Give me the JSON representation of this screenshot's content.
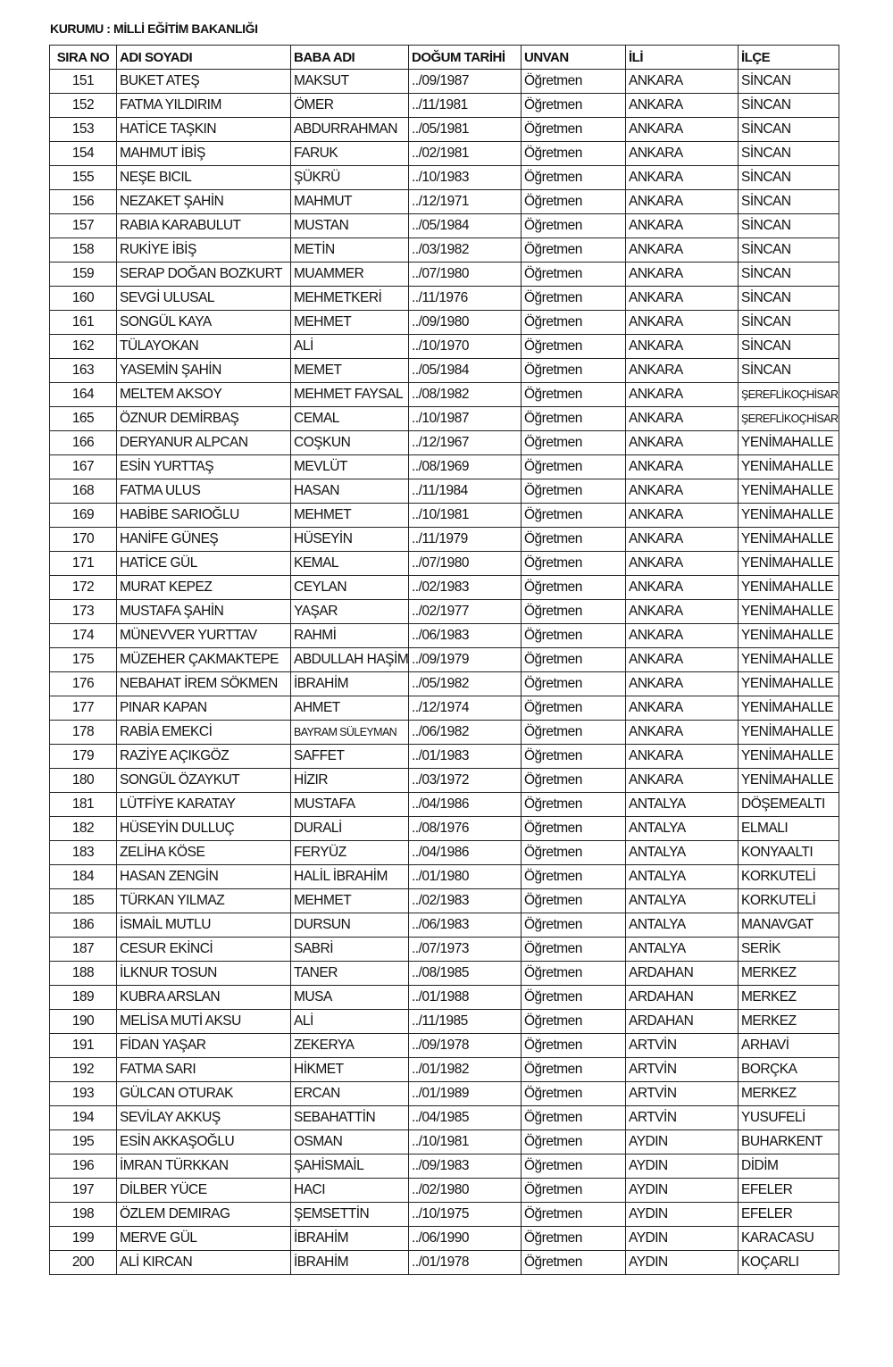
{
  "title": "KURUMU : MİLLİ EĞİTİM BAKANLIĞI",
  "headers": [
    "SIRA NO",
    "ADI SOYADI",
    "BABA ADI",
    "DOĞUM TARİHİ",
    "UNVAN",
    "İLİ",
    "İLÇE"
  ],
  "rows": [
    [
      "151",
      "BUKET ATEŞ",
      "MAKSUT",
      "../09/1987",
      "Öğretmen",
      "ANKARA",
      "SİNCAN"
    ],
    [
      "152",
      "FATMA YILDIRIM",
      "ÖMER",
      "../11/1981",
      "Öğretmen",
      "ANKARA",
      "SİNCAN"
    ],
    [
      "153",
      "HATİCE TAŞKIN",
      "ABDURRAHMAN",
      "../05/1981",
      "Öğretmen",
      "ANKARA",
      "SİNCAN"
    ],
    [
      "154",
      "MAHMUT İBİŞ",
      "FARUK",
      "../02/1981",
      "Öğretmen",
      "ANKARA",
      "SİNCAN"
    ],
    [
      "155",
      "NEŞE BICIL",
      "ŞÜKRÜ",
      "../10/1983",
      "Öğretmen",
      "ANKARA",
      "SİNCAN"
    ],
    [
      "156",
      "NEZAKET ŞAHİN",
      "MAHMUT",
      "../12/1971",
      "Öğretmen",
      "ANKARA",
      "SİNCAN"
    ],
    [
      "157",
      "RABIA KARABULUT",
      "MUSTAN",
      "../05/1984",
      "Öğretmen",
      "ANKARA",
      "SİNCAN"
    ],
    [
      "158",
      "RUKİYE İBİŞ",
      "METİN",
      "../03/1982",
      "Öğretmen",
      "ANKARA",
      "SİNCAN"
    ],
    [
      "159",
      "SERAP DOĞAN BOZKURT",
      "MUAMMER",
      "../07/1980",
      "Öğretmen",
      "ANKARA",
      "SİNCAN"
    ],
    [
      "160",
      "SEVGİ ULUSAL",
      "MEHMETKERİ",
      "../11/1976",
      "Öğretmen",
      "ANKARA",
      "SİNCAN"
    ],
    [
      "161",
      "SONGÜL KAYA",
      "MEHMET",
      "../09/1980",
      "Öğretmen",
      "ANKARA",
      "SİNCAN"
    ],
    [
      "162",
      "TÜLAYOKAN",
      "ALİ",
      "../10/1970",
      "Öğretmen",
      "ANKARA",
      "SİNCAN"
    ],
    [
      "163",
      "YASEMİN ŞAHİN",
      "MEMET",
      "../05/1984",
      "Öğretmen",
      "ANKARA",
      "SİNCAN"
    ],
    [
      "164",
      "MELTEM AKSOY",
      "MEHMET FAYSAL",
      "../08/1982",
      "Öğretmen",
      "ANKARA",
      "ŞEREFLİKOÇHİSAR"
    ],
    [
      "165",
      "ÖZNUR DEMİRBAŞ",
      "CEMAL",
      "../10/1987",
      "Öğretmen",
      "ANKARA",
      "ŞEREFLİKOÇHİSAR"
    ],
    [
      "166",
      "DERYANUR ALPCAN",
      "COŞKUN",
      "../12/1967",
      "Öğretmen",
      "ANKARA",
      "YENİMAHALLE"
    ],
    [
      "167",
      "ESİN YURTTAŞ",
      "MEVLÜT",
      "../08/1969",
      "Öğretmen",
      "ANKARA",
      "YENİMAHALLE"
    ],
    [
      "168",
      "FATMA ULUS",
      "HASAN",
      "../11/1984",
      "Öğretmen",
      "ANKARA",
      "YENİMAHALLE"
    ],
    [
      "169",
      "HABİBE SARIOĞLU",
      "MEHMET",
      "../10/1981",
      "Öğretmen",
      "ANKARA",
      "YENİMAHALLE"
    ],
    [
      "170",
      "HANİFE GÜNEŞ",
      "HÜSEYİN",
      "../11/1979",
      "Öğretmen",
      "ANKARA",
      "YENİMAHALLE"
    ],
    [
      "171",
      "HATİCE GÜL",
      "KEMAL",
      "../07/1980",
      "Öğretmen",
      "ANKARA",
      "YENİMAHALLE"
    ],
    [
      "172",
      "MURAT KEPEZ",
      "CEYLAN",
      "../02/1983",
      "Öğretmen",
      "ANKARA",
      "YENİMAHALLE"
    ],
    [
      "173",
      "MUSTAFA ŞAHİN",
      "YAŞAR",
      "../02/1977",
      "Öğretmen",
      "ANKARA",
      "YENİMAHALLE"
    ],
    [
      "174",
      "MÜNEVVER YURTTAV",
      "RAHMİ",
      "../06/1983",
      "Öğretmen",
      "ANKARA",
      "YENİMAHALLE"
    ],
    [
      "175",
      "MÜZEHER ÇAKMAKTEPE",
      "ABDULLAH HAŞİM",
      "../09/1979",
      "Öğretmen",
      "ANKARA",
      "YENİMAHALLE"
    ],
    [
      "176",
      "NEBAHAT İREM SÖKMEN",
      "İBRAHİM",
      "../05/1982",
      "Öğretmen",
      "ANKARA",
      "YENİMAHALLE"
    ],
    [
      "177",
      "PINAR KAPAN",
      "AHMET",
      "../12/1974",
      "Öğretmen",
      "ANKARA",
      "YENİMAHALLE"
    ],
    [
      "178",
      "RABİA EMEKCİ",
      "BAYRAM SÜLEYMAN",
      "../06/1982",
      "Öğretmen",
      "ANKARA",
      "YENİMAHALLE"
    ],
    [
      "179",
      "RAZİYE AÇIKGÖZ",
      "SAFFET",
      "../01/1983",
      "Öğretmen",
      "ANKARA",
      "YENİMAHALLE"
    ],
    [
      "180",
      "SONGÜL ÖZAYKUT",
      "HİZIR",
      "../03/1972",
      "Öğretmen",
      "ANKARA",
      "YENİMAHALLE"
    ],
    [
      "181",
      "LÜTFİYE KARATAY",
      "MUSTAFA",
      "../04/1986",
      "Öğretmen",
      "ANTALYA",
      "DÖŞEMEALTI"
    ],
    [
      "182",
      "HÜSEYİN DULLUÇ",
      "DURALİ",
      "../08/1976",
      "Öğretmen",
      "ANTALYA",
      "ELMALI"
    ],
    [
      "183",
      "ZELİHA KÖSE",
      "FERYÜZ",
      "../04/1986",
      "Öğretmen",
      "ANTALYA",
      "KONYAALTI"
    ],
    [
      "184",
      "HASAN ZENGİN",
      "HALİL İBRAHİM",
      "../01/1980",
      "Öğretmen",
      "ANTALYA",
      "KORKUTELİ"
    ],
    [
      "185",
      "TÜRKAN YILMAZ",
      "MEHMET",
      "../02/1983",
      "Öğretmen",
      "ANTALYA",
      "KORKUTELİ"
    ],
    [
      "186",
      "İSMAİL MUTLU",
      "DURSUN",
      "../06/1983",
      "Öğretmen",
      "ANTALYA",
      "MANAVGAT"
    ],
    [
      "187",
      "CESUR EKİNCİ",
      "SABRİ",
      "../07/1973",
      "Öğretmen",
      "ANTALYA",
      "SERİK"
    ],
    [
      "188",
      "İLKNUR TOSUN",
      "TANER",
      "../08/1985",
      "Öğretmen",
      "ARDAHAN",
      "MERKEZ"
    ],
    [
      "189",
      "KUBRA ARSLAN",
      "MUSA",
      "../01/1988",
      "Öğretmen",
      "ARDAHAN",
      "MERKEZ"
    ],
    [
      "190",
      "MELİSA MUTİ AKSU",
      "ALİ",
      "../11/1985",
      "Öğretmen",
      "ARDAHAN",
      "MERKEZ"
    ],
    [
      "191",
      "FİDAN YAŞAR",
      "ZEKERYA",
      "../09/1978",
      "Öğretmen",
      "ARTVİN",
      "ARHAVİ"
    ],
    [
      "192",
      "FATMA SARI",
      "HİKMET",
      "../01/1982",
      "Öğretmen",
      "ARTVİN",
      "BORÇKA"
    ],
    [
      "193",
      "GÜLCAN OTURAK",
      "ERCAN",
      "../01/1989",
      "Öğretmen",
      "ARTVİN",
      "MERKEZ"
    ],
    [
      "194",
      "SEVİLAY AKKUŞ",
      "SEBAHATTİN",
      "../04/1985",
      "Öğretmen",
      "ARTVİN",
      "YUSUFELİ"
    ],
    [
      "195",
      "ESİN AKKAŞOĞLU",
      "OSMAN",
      "../10/1981",
      "Öğretmen",
      "AYDIN",
      "BUHARKENT"
    ],
    [
      "196",
      "İMRAN TÜRKKAN",
      "ŞAHİSMAİL",
      "../09/1983",
      "Öğretmen",
      "AYDIN",
      "DİDİM"
    ],
    [
      "197",
      "DİLBER YÜCE",
      "HACI",
      "../02/1980",
      "Öğretmen",
      "AYDIN",
      "EFELER"
    ],
    [
      "198",
      "ÖZLEM DEMIRAG",
      "ŞEMSETTİN",
      "../10/1975",
      "Öğretmen",
      "AYDIN",
      "EFELER"
    ],
    [
      "199",
      "MERVE GÜL",
      "İBRAHİM",
      "../06/1990",
      "Öğretmen",
      "AYDIN",
      "KARACASU"
    ],
    [
      "200",
      "ALİ KIRCAN",
      "İBRAHİM",
      "../01/1978",
      "Öğretmen",
      "AYDIN",
      "KOÇARLI"
    ]
  ]
}
